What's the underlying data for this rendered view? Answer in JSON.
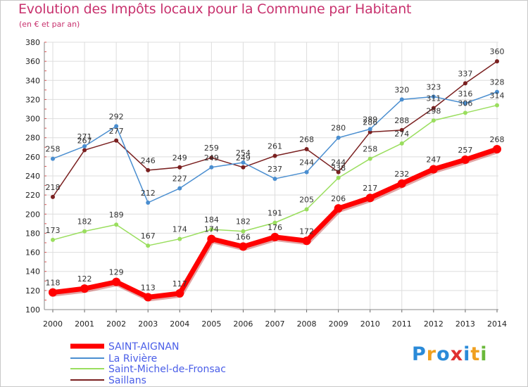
{
  "header": {
    "title": "Evolution des Impôts locaux pour la Commune par Habitant",
    "subtitle": "(en € et par an)"
  },
  "logo": {
    "text": "Proxiti"
  },
  "colors": {
    "title": "#c8326e",
    "legend_text": "#4a5ee8"
  },
  "chart_data": {
    "type": "line",
    "title": "Evolution des Impôts locaux pour la Commune par Habitant",
    "subtitle": "(en € et par an)",
    "xlabel": "",
    "ylabel": "",
    "x": [
      "2000",
      "2001",
      "2002",
      "2003",
      "2004",
      "2005",
      "2006",
      "2007",
      "2008",
      "2009",
      "2010",
      "2011",
      "2012",
      "2013",
      "2014"
    ],
    "ylim": [
      100,
      380
    ],
    "yticks": [
      100,
      120,
      140,
      160,
      180,
      200,
      220,
      240,
      260,
      280,
      300,
      320,
      340,
      360,
      380
    ],
    "grid": true,
    "legend_position": "bottom-left",
    "series": [
      {
        "name": "SAINT-AIGNAN",
        "color": "#ff0000",
        "values": [
          118,
          122,
          129,
          113,
          117,
          174,
          166,
          176,
          172,
          206,
          217,
          232,
          247,
          257,
          268
        ]
      },
      {
        "name": "La Rivière",
        "color": "#4a8ed0",
        "values": [
          258,
          271,
          292,
          212,
          227,
          249,
          254,
          237,
          244,
          280,
          289,
          320,
          323,
          316,
          328
        ]
      },
      {
        "name": "Saint-Michel-de-Fronsac",
        "color": "#9ade5e",
        "values": [
          173,
          182,
          189,
          167,
          174,
          184,
          182,
          191,
          205,
          238,
          258,
          274,
          298,
          306,
          314
        ]
      },
      {
        "name": "Saillans",
        "color": "#7a2020",
        "values": [
          218,
          267,
          277,
          246,
          249,
          259,
          249,
          261,
          268,
          244,
          286,
          288,
          311,
          337,
          360
        ]
      }
    ]
  }
}
